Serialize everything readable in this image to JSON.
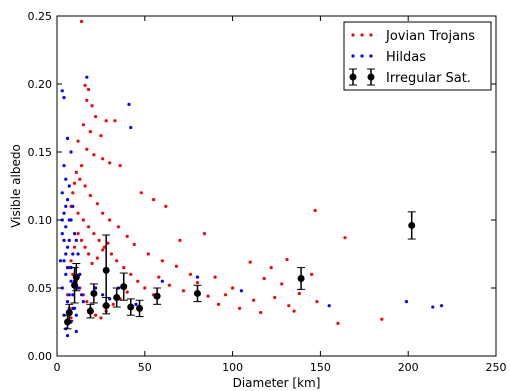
{
  "chart_data": {
    "type": "scatter",
    "xlabel": "Diameter [km]",
    "ylabel": "Visible albedo",
    "xlim": [
      0,
      250
    ],
    "ylim": [
      0,
      0.25
    ],
    "x_ticks": [
      "0",
      "50",
      "100",
      "150",
      "200",
      "250"
    ],
    "y_ticks": [
      "0.00",
      "0.05",
      "0.10",
      "0.15",
      "0.20",
      "0.25"
    ],
    "x_tick_values": [
      0,
      50,
      100,
      150,
      200,
      250
    ],
    "y_tick_values": [
      0,
      0.05,
      0.1,
      0.15,
      0.2,
      0.25
    ],
    "grid": false,
    "legend_position": "top-right",
    "legend": [
      "Jovian Trojans",
      "Hildas",
      "Irregular Sat."
    ],
    "colors": {
      "trojans": "#ff0000",
      "hildas": "#0000ff",
      "irregular": "#000000"
    },
    "series": [
      {
        "name": "Jovian Trojans",
        "marker": "dot",
        "points": [
          [
            14,
            0.246
          ],
          [
            16,
            0.199
          ],
          [
            18,
            0.196
          ],
          [
            17,
            0.188
          ],
          [
            20,
            0.184
          ],
          [
            22,
            0.176
          ],
          [
            28,
            0.173
          ],
          [
            33,
            0.173
          ],
          [
            15,
            0.17
          ],
          [
            19,
            0.165
          ],
          [
            25,
            0.162
          ],
          [
            12,
            0.158
          ],
          [
            17,
            0.152
          ],
          [
            21,
            0.148
          ],
          [
            26,
            0.145
          ],
          [
            30,
            0.142
          ],
          [
            36,
            0.14
          ],
          [
            48,
            0.12
          ],
          [
            55,
            0.115
          ],
          [
            62,
            0.11
          ],
          [
            84,
            0.09
          ],
          [
            70,
            0.085
          ],
          [
            147,
            0.107
          ],
          [
            164,
            0.087
          ],
          [
            131,
            0.071
          ],
          [
            110,
            0.069
          ],
          [
            122,
            0.065
          ],
          [
            145,
            0.06
          ],
          [
            118,
            0.057
          ],
          [
            128,
            0.053
          ],
          [
            100,
            0.05
          ],
          [
            96,
            0.045
          ],
          [
            112,
            0.041
          ],
          [
            132,
            0.037
          ],
          [
            148,
            0.04
          ],
          [
            135,
            0.033
          ],
          [
            160,
            0.024
          ],
          [
            185,
            0.027
          ],
          [
            90,
            0.058
          ],
          [
            76,
            0.06
          ],
          [
            68,
            0.066
          ],
          [
            60,
            0.07
          ],
          [
            52,
            0.075
          ],
          [
            44,
            0.082
          ],
          [
            40,
            0.088
          ],
          [
            35,
            0.095
          ],
          [
            30,
            0.1
          ],
          [
            26,
            0.105
          ],
          [
            23,
            0.112
          ],
          [
            19,
            0.118
          ],
          [
            16,
            0.125
          ],
          [
            13,
            0.13
          ],
          [
            11,
            0.135
          ],
          [
            14,
            0.14
          ],
          [
            10,
            0.127
          ],
          [
            9,
            0.12
          ],
          [
            8,
            0.11
          ],
          [
            12,
            0.105
          ],
          [
            15,
            0.1
          ],
          [
            18,
            0.095
          ],
          [
            21,
            0.09
          ],
          [
            24,
            0.085
          ],
          [
            27,
            0.08
          ],
          [
            31,
            0.075
          ],
          [
            34,
            0.07
          ],
          [
            38,
            0.065
          ],
          [
            42,
            0.06
          ],
          [
            46,
            0.055
          ],
          [
            50,
            0.05
          ],
          [
            55,
            0.045
          ],
          [
            58,
            0.058
          ],
          [
            64,
            0.052
          ],
          [
            72,
            0.048
          ],
          [
            80,
            0.054
          ],
          [
            86,
            0.044
          ],
          [
            92,
            0.038
          ],
          [
            104,
            0.035
          ],
          [
            116,
            0.032
          ],
          [
            124,
            0.043
          ],
          [
            138,
            0.046
          ],
          [
            9,
            0.06
          ],
          [
            11,
            0.055
          ],
          [
            13,
            0.05
          ],
          [
            15,
            0.045
          ],
          [
            17,
            0.04
          ],
          [
            19,
            0.035
          ],
          [
            22,
            0.03
          ],
          [
            25,
            0.028
          ],
          [
            28,
            0.033
          ],
          [
            32,
            0.038
          ],
          [
            36,
            0.042
          ],
          [
            40,
            0.047
          ],
          [
            20,
            0.068
          ],
          [
            23,
            0.072
          ],
          [
            26,
            0.078
          ],
          [
            29,
            0.083
          ],
          [
            12,
            0.09
          ],
          [
            14,
            0.085
          ],
          [
            16,
            0.08
          ],
          [
            18,
            0.075
          ],
          [
            10,
            0.08
          ],
          [
            8,
            0.07
          ],
          [
            7,
            0.065
          ],
          [
            6,
            0.045
          ],
          [
            7,
            0.035
          ],
          [
            8,
            0.028
          ]
        ]
      },
      {
        "name": "Hildas",
        "marker": "dot",
        "points": [
          [
            3,
            0.195
          ],
          [
            4,
            0.19
          ],
          [
            17,
            0.205
          ],
          [
            41,
            0.185
          ],
          [
            42,
            0.168
          ],
          [
            6,
            0.16
          ],
          [
            8,
            0.15
          ],
          [
            4,
            0.14
          ],
          [
            5,
            0.13
          ],
          [
            7,
            0.125
          ],
          [
            3,
            0.12
          ],
          [
            6,
            0.115
          ],
          [
            9,
            0.11
          ],
          [
            4,
            0.105
          ],
          [
            8,
            0.1
          ],
          [
            5,
            0.095
          ],
          [
            3,
            0.09
          ],
          [
            7,
            0.085
          ],
          [
            6,
            0.08
          ],
          [
            9,
            0.075
          ],
          [
            4,
            0.07
          ],
          [
            8,
            0.065
          ],
          [
            5,
            0.06
          ],
          [
            10,
            0.055
          ],
          [
            3,
            0.05
          ],
          [
            7,
            0.045
          ],
          [
            6,
            0.04
          ],
          [
            9,
            0.035
          ],
          [
            4,
            0.03
          ],
          [
            8,
            0.025
          ],
          [
            5,
            0.02
          ],
          [
            11,
            0.018
          ],
          [
            6,
            0.015
          ],
          [
            13,
            0.06
          ],
          [
            12,
            0.05
          ],
          [
            14,
            0.045
          ],
          [
            15,
            0.04
          ],
          [
            22,
            0.05
          ],
          [
            26,
            0.045
          ],
          [
            30,
            0.042
          ],
          [
            35,
            0.05
          ],
          [
            45,
            0.038
          ],
          [
            60,
            0.055
          ],
          [
            80,
            0.058
          ],
          [
            105,
            0.048
          ],
          [
            155,
            0.037
          ],
          [
            199,
            0.04
          ],
          [
            214,
            0.036
          ],
          [
            219,
            0.037
          ],
          [
            2,
            0.07
          ],
          [
            3,
            0.1
          ],
          [
            5,
            0.11
          ],
          [
            7,
            0.1
          ],
          [
            10,
            0.09
          ],
          [
            11,
            0.085
          ],
          [
            12,
            0.075
          ],
          [
            6,
            0.065
          ],
          [
            8,
            0.055
          ],
          [
            9,
            0.045
          ],
          [
            10,
            0.035
          ],
          [
            11,
            0.03
          ],
          [
            7,
            0.025
          ],
          [
            4,
            0.085
          ],
          [
            5,
            0.075
          ]
        ]
      },
      {
        "name": "Irregular Sat.",
        "marker": "errorbar",
        "points": [
          [
            6,
            0.025,
            0.005
          ],
          [
            7,
            0.032,
            0.006
          ],
          [
            10,
            0.052,
            0.013
          ],
          [
            11,
            0.058,
            0.01
          ],
          [
            19,
            0.033,
            0.005
          ],
          [
            21,
            0.046,
            0.007
          ],
          [
            28,
            0.063,
            0.026
          ],
          [
            28,
            0.037,
            0.006
          ],
          [
            34,
            0.043,
            0.007
          ],
          [
            38,
            0.051,
            0.01
          ],
          [
            42,
            0.036,
            0.006
          ],
          [
            47,
            0.035,
            0.006
          ],
          [
            57,
            0.044,
            0.006
          ],
          [
            80,
            0.046,
            0.006
          ],
          [
            139,
            0.057,
            0.008
          ],
          [
            202,
            0.096,
            0.01
          ]
        ]
      }
    ]
  }
}
